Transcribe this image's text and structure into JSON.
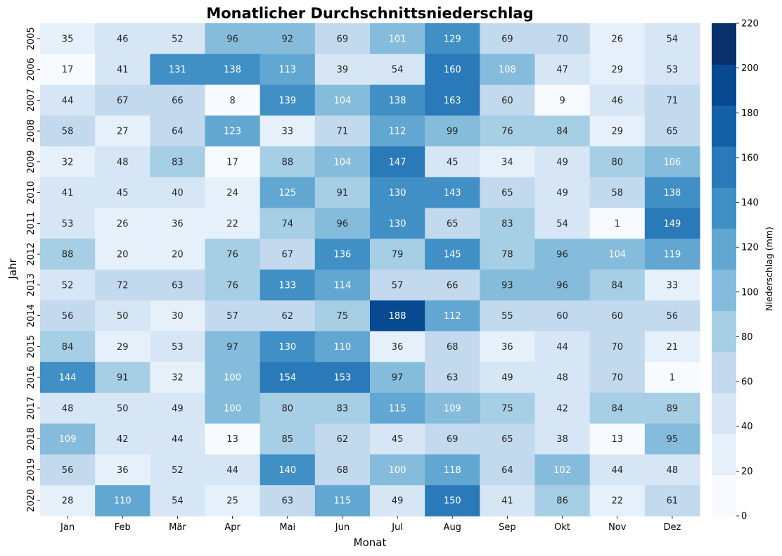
{
  "chart_data": {
    "type": "heatmap",
    "title": "Monatlicher Durchschnittsniederschlag",
    "xlabel": "Monat",
    "ylabel": "Jahr",
    "colorbar_label": "Niederschlag (mm)",
    "colorbar_ticks": [
      0,
      20,
      40,
      60,
      80,
      100,
      120,
      140,
      160,
      180,
      200,
      220
    ],
    "vmin": 0,
    "vmax": 220,
    "colormap": "Blues (11 discrete steps)",
    "palette": [
      "#f7fbff",
      "#e6f0fa",
      "#d6e6f4",
      "#c2d9ee",
      "#a6cee4",
      "#85bcdc",
      "#62a7d2",
      "#4090c5",
      "#2a7ab9",
      "#1561a9",
      "#084a91",
      "#08306b"
    ],
    "x": [
      "Jan",
      "Feb",
      "Mär",
      "Apr",
      "Mai",
      "Jun",
      "Jul",
      "Aug",
      "Sep",
      "Okt",
      "Nov",
      "Dez"
    ],
    "y": [
      "2005",
      "2006",
      "2007",
      "2008",
      "2009",
      "2010",
      "2011",
      "2012",
      "2013",
      "2014",
      "2015",
      "2016",
      "2017",
      "2018",
      "2019",
      "2020"
    ],
    "values": [
      [
        35,
        46,
        52,
        96,
        92,
        69,
        101,
        129,
        69,
        70,
        26,
        54
      ],
      [
        17,
        41,
        131,
        138,
        113,
        39,
        54,
        160,
        108,
        47,
        29,
        53
      ],
      [
        44,
        67,
        66,
        8,
        139,
        104,
        138,
        163,
        60,
        9,
        46,
        71
      ],
      [
        58,
        27,
        64,
        123,
        33,
        71,
        112,
        99,
        76,
        84,
        29,
        65
      ],
      [
        32,
        48,
        83,
        17,
        88,
        104,
        147,
        45,
        34,
        49,
        80,
        106
      ],
      [
        41,
        45,
        40,
        24,
        125,
        91,
        130,
        143,
        65,
        49,
        58,
        138
      ],
      [
        53,
        26,
        36,
        22,
        74,
        96,
        130,
        65,
        83,
        54,
        1,
        149
      ],
      [
        88,
        20,
        20,
        76,
        67,
        136,
        79,
        145,
        78,
        96,
        104,
        119
      ],
      [
        52,
        72,
        63,
        76,
        133,
        114,
        57,
        66,
        93,
        96,
        84,
        33
      ],
      [
        56,
        50,
        30,
        57,
        62,
        75,
        188,
        112,
        55,
        60,
        60,
        56
      ],
      [
        84,
        29,
        53,
        97,
        130,
        110,
        36,
        68,
        36,
        44,
        70,
        21
      ],
      [
        144,
        91,
        32,
        100,
        154,
        153,
        97,
        63,
        49,
        48,
        70,
        1
      ],
      [
        48,
        50,
        49,
        100,
        80,
        83,
        115,
        109,
        75,
        42,
        84,
        89
      ],
      [
        109,
        42,
        44,
        13,
        85,
        62,
        45,
        69,
        65,
        38,
        13,
        95
      ],
      [
        56,
        36,
        52,
        44,
        140,
        68,
        100,
        118,
        64,
        102,
        44,
        48
      ],
      [
        28,
        110,
        54,
        25,
        63,
        115,
        49,
        150,
        41,
        86,
        22,
        61
      ]
    ],
    "grid": false
  }
}
